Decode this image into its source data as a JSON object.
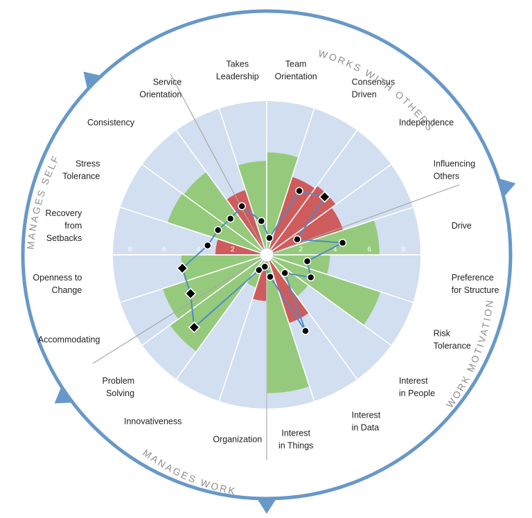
{
  "colors": {
    "ring": "#6898c8",
    "background_disc": "#d1dff0",
    "positive_bar": "#95ca7c",
    "negative_bar": "#ce5c5c",
    "line": "#4f8bc5",
    "marker": "#000000"
  },
  "section_titles": [
    {
      "id": "works-with-others",
      "text": "WORKS WITH OTHERS"
    },
    {
      "id": "work-motivation",
      "text": "WORK MOTIVATION"
    },
    {
      "id": "manages-work",
      "text": "MANAGES WORK"
    },
    {
      "id": "manages-self",
      "text": "MANAGES SELF"
    }
  ],
  "chart_data": {
    "type": "polar-bar",
    "radial_ticks": [
      "2",
      "4",
      "6",
      "8"
    ],
    "r_range": [
      0,
      9
    ],
    "categories": [
      {
        "label": [
          "Team",
          "Orientation"
        ],
        "bar": 6.0,
        "marker": 1.0,
        "marker_shape": "circle"
      },
      {
        "label": [
          "Consensus",
          "Driven"
        ],
        "bar": -4.8,
        "marker": 4.2,
        "marker_shape": "circle"
      },
      {
        "label": [
          "Independence"
        ],
        "bar": -5.0,
        "marker": 4.8,
        "marker_shape": "diamond"
      },
      {
        "label": [
          "Influencing",
          "Others"
        ],
        "bar": -4.7,
        "marker": 2.0,
        "marker_shape": "circle"
      },
      {
        "label": [
          "Drive"
        ],
        "bar": 6.6,
        "marker": 4.5,
        "marker_shape": "circle"
      },
      {
        "label": [
          "Preference",
          "for Structure"
        ],
        "bar": 3.7,
        "marker": 2.4,
        "marker_shape": "circle"
      },
      {
        "label": [
          "Risk",
          "Tolerance"
        ],
        "bar": 7.0,
        "marker": 2.9,
        "marker_shape": "circle"
      },
      {
        "label": [
          "Interest",
          "in People"
        ],
        "bar": 3.0,
        "marker": 1.5,
        "marker_shape": "circle"
      },
      {
        "label": [
          "Interest",
          "in Data"
        ],
        "bar": -4.2,
        "marker": 5.0,
        "marker_shape": "circle"
      },
      {
        "label": [
          "Interest",
          "in Things"
        ],
        "bar": 8.1,
        "marker": 1.3,
        "marker_shape": "circle"
      },
      {
        "label": [
          "Organization"
        ],
        "bar": -2.7,
        "marker": 0.7,
        "marker_shape": "circle"
      },
      {
        "label": [
          "Innovativeness"
        ],
        "bar": 2.0,
        "marker": 1.0,
        "marker_shape": "circle"
      },
      {
        "label": [
          "Problem",
          "Solving"
        ],
        "bar": 7.0,
        "marker": 6.0,
        "marker_shape": "diamond"
      },
      {
        "label": [
          "Accommodating"
        ],
        "bar": 6.4,
        "marker": 5.0,
        "marker_shape": "diamond"
      },
      {
        "label": [
          "Openness to",
          "Change"
        ],
        "bar": 5.0,
        "marker": 5.0,
        "marker_shape": "diamond"
      },
      {
        "label": [
          "Recovery",
          "from",
          "Setbacks"
        ],
        "bar": -3.0,
        "marker": 3.5,
        "marker_shape": "circle"
      },
      {
        "label": [
          "Stress",
          "Tolerance"
        ],
        "bar": 6.1,
        "marker": 3.2,
        "marker_shape": "circle"
      },
      {
        "label": [
          "Consistency"
        ],
        "bar": 6.0,
        "marker": 3.0,
        "marker_shape": "circle"
      },
      {
        "label": [
          "Service",
          "Orientation"
        ],
        "bar": -4.0,
        "marker": 3.2,
        "marker_shape": "circle"
      },
      {
        "label": [
          "Takes",
          "Leadership"
        ],
        "bar": 5.5,
        "marker": 2.0,
        "marker_shape": "circle"
      }
    ]
  }
}
